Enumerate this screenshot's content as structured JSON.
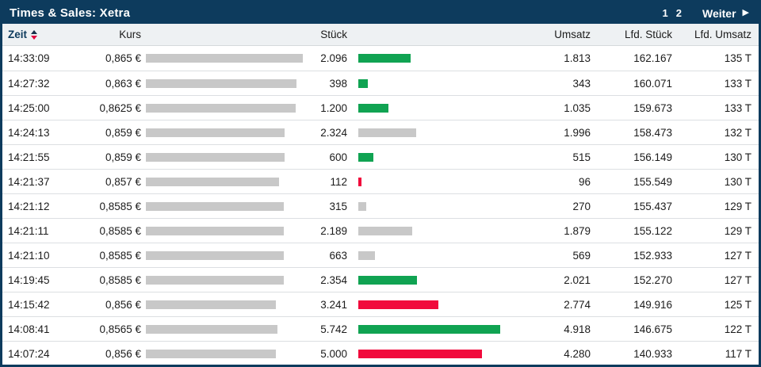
{
  "title_bar": {
    "title": "Times & Sales: Xetra",
    "pages": [
      "1",
      "2"
    ],
    "next_label": "Weiter",
    "next_icon": "▶"
  },
  "table": {
    "columns": [
      "Zeit",
      "Kurs",
      "Stück",
      "Umsatz",
      "Lfd. Stück",
      "Lfd. Umsatz"
    ],
    "sort_column": "Zeit",
    "sort_icon": "up-down-sort-icon",
    "rows": [
      {
        "zeit": "14:33:09",
        "kurs": "0,865 €",
        "kurs_value": 0.865,
        "stueck": "2.096",
        "stueck_value": 2096,
        "bar_color": "green",
        "umsatz": "1.813",
        "lfd_stueck": "162.167",
        "lfd_umsatz": "135 T"
      },
      {
        "zeit": "14:27:32",
        "kurs": "0,863 €",
        "kurs_value": 0.863,
        "stueck": "398",
        "stueck_value": 398,
        "bar_color": "green",
        "umsatz": "343",
        "lfd_stueck": "160.071",
        "lfd_umsatz": "133 T"
      },
      {
        "zeit": "14:25:00",
        "kurs": "0,8625 €",
        "kurs_value": 0.8625,
        "stueck": "1.200",
        "stueck_value": 1200,
        "bar_color": "green",
        "umsatz": "1.035",
        "lfd_stueck": "159.673",
        "lfd_umsatz": "133 T"
      },
      {
        "zeit": "14:24:13",
        "kurs": "0,859 €",
        "kurs_value": 0.859,
        "stueck": "2.324",
        "stueck_value": 2324,
        "bar_color": "gray",
        "umsatz": "1.996",
        "lfd_stueck": "158.473",
        "lfd_umsatz": "132 T"
      },
      {
        "zeit": "14:21:55",
        "kurs": "0,859 €",
        "kurs_value": 0.859,
        "stueck": "600",
        "stueck_value": 600,
        "bar_color": "green",
        "umsatz": "515",
        "lfd_stueck": "156.149",
        "lfd_umsatz": "130 T"
      },
      {
        "zeit": "14:21:37",
        "kurs": "0,857 €",
        "kurs_value": 0.857,
        "stueck": "112",
        "stueck_value": 112,
        "bar_color": "red",
        "umsatz": "96",
        "lfd_stueck": "155.549",
        "lfd_umsatz": "130 T"
      },
      {
        "zeit": "14:21:12",
        "kurs": "0,8585 €",
        "kurs_value": 0.8585,
        "stueck": "315",
        "stueck_value": 315,
        "bar_color": "gray",
        "umsatz": "270",
        "lfd_stueck": "155.437",
        "lfd_umsatz": "129 T"
      },
      {
        "zeit": "14:21:11",
        "kurs": "0,8585 €",
        "kurs_value": 0.8585,
        "stueck": "2.189",
        "stueck_value": 2189,
        "bar_color": "gray",
        "umsatz": "1.879",
        "lfd_stueck": "155.122",
        "lfd_umsatz": "129 T"
      },
      {
        "zeit": "14:21:10",
        "kurs": "0,8585 €",
        "kurs_value": 0.8585,
        "stueck": "663",
        "stueck_value": 663,
        "bar_color": "gray",
        "umsatz": "569",
        "lfd_stueck": "152.933",
        "lfd_umsatz": "127 T"
      },
      {
        "zeit": "14:19:45",
        "kurs": "0,8585 €",
        "kurs_value": 0.8585,
        "stueck": "2.354",
        "stueck_value": 2354,
        "bar_color": "green",
        "umsatz": "2.021",
        "lfd_stueck": "152.270",
        "lfd_umsatz": "127 T"
      },
      {
        "zeit": "14:15:42",
        "kurs": "0,856 €",
        "kurs_value": 0.856,
        "stueck": "3.241",
        "stueck_value": 3241,
        "bar_color": "red",
        "umsatz": "2.774",
        "lfd_stueck": "149.916",
        "lfd_umsatz": "125 T"
      },
      {
        "zeit": "14:08:41",
        "kurs": "0,8565 €",
        "kurs_value": 0.8565,
        "stueck": "5.742",
        "stueck_value": 5742,
        "bar_color": "green",
        "umsatz": "4.918",
        "lfd_stueck": "146.675",
        "lfd_umsatz": "122 T"
      },
      {
        "zeit": "14:07:24",
        "kurs": "0,856 €",
        "kurs_value": 0.856,
        "stueck": "5.000",
        "stueck_value": 5000,
        "bar_color": "red",
        "umsatz": "4.280",
        "lfd_stueck": "140.933",
        "lfd_umsatz": "117 T"
      }
    ]
  },
  "colors": {
    "navy": "#0d3b5d",
    "green": "#10a352",
    "red": "#f10a3c",
    "bar_gray": "#c8c8c8",
    "header_bg": "#eef1f3"
  }
}
